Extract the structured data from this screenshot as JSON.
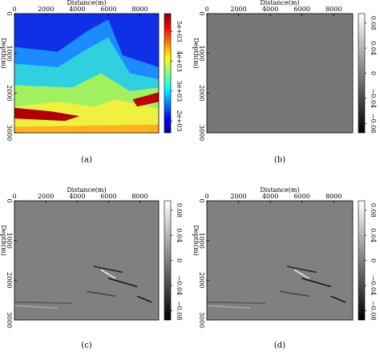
{
  "chart_data": [
    {
      "type": "heatmap",
      "colormap": "jet",
      "xlabel": "Distance(m)",
      "ylabel": "Depth(m)",
      "xlim": [
        0,
        9200
      ],
      "xticks": [
        0,
        2000,
        4000,
        6000,
        8000
      ],
      "ylim": [
        0,
        3000
      ],
      "yticks": [
        0,
        1000,
        2000,
        3000
      ],
      "clim": [
        1600,
        5600
      ],
      "cticks": [
        {
          "value": 2000,
          "label": "2e+03"
        },
        {
          "value": 3000,
          "label": "3e+03"
        },
        {
          "value": 4000,
          "label": "4e+03"
        },
        {
          "value": 5000,
          "label": "5e+03"
        }
      ],
      "caption": "(a)"
    },
    {
      "type": "heatmap",
      "colormap": "gray",
      "xlabel": "Distance(m)",
      "ylabel": "Depth(m)",
      "xlim": [
        0,
        9200
      ],
      "xticks": [
        0,
        2000,
        4000,
        6000,
        8000
      ],
      "ylim": [
        0,
        3000
      ],
      "yticks": [
        0,
        1000,
        2000,
        3000
      ],
      "clim": [
        -0.095,
        0.095
      ],
      "cticks": [
        0.08,
        0.04,
        0,
        {
          "value": -0.04,
          "label": "−0.04"
        },
        {
          "value": -0.08,
          "label": "−0.08"
        }
      ],
      "caption": "(b)"
    },
    {
      "type": "heatmap",
      "colormap": "gray",
      "xlabel": "Distance(m)",
      "ylabel": "Depth(m)",
      "xlim": [
        0,
        9200
      ],
      "xticks": [
        0,
        2000,
        4000,
        6000,
        8000
      ],
      "ylim": [
        0,
        3000
      ],
      "yticks": [
        0,
        1000,
        2000,
        3000
      ],
      "clim": [
        -0.095,
        0.095
      ],
      "cticks": [
        0.08,
        0.04,
        0,
        {
          "value": -0.04,
          "label": "−0.04"
        },
        {
          "value": -0.08,
          "label": "−0.08"
        }
      ],
      "caption": "(c)"
    },
    {
      "type": "heatmap",
      "colormap": "gray",
      "xlabel": "Distance(m)",
      "ylabel": "Depth(m)",
      "xlim": [
        0,
        9200
      ],
      "xticks": [
        0,
        2000,
        4000,
        6000,
        8000
      ],
      "ylim": [
        0,
        3000
      ],
      "yticks": [
        0,
        1000,
        2000,
        3000
      ],
      "clim": [
        -0.095,
        0.095
      ],
      "cticks": [
        0.08,
        0.04,
        0,
        {
          "value": -0.04,
          "label": "−0.04"
        },
        {
          "value": -0.08,
          "label": "−0.08"
        }
      ],
      "caption": "(d)"
    }
  ]
}
